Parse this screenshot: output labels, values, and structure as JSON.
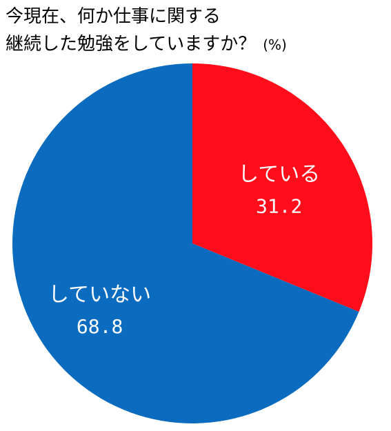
{
  "chart_data": {
    "type": "pie",
    "title_lines": [
      "今現在、何か仕事に関する",
      "継続した勉強をしていますか？"
    ],
    "unit": "(%)",
    "slices": [
      {
        "label": "している",
        "value": 31.2,
        "value_text": "31.2",
        "color": "#ff0d1b"
      },
      {
        "label": "していない",
        "value": 68.8,
        "value_text": "68.8",
        "color": "#0b6bbf"
      }
    ],
    "start_angle": "12 o'clock",
    "direction": "clockwise"
  }
}
